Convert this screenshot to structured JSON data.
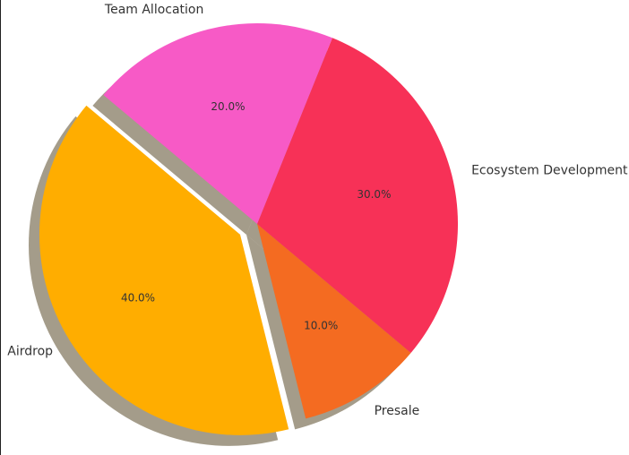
{
  "chart_data": {
    "type": "pie",
    "categories": [
      "Airdrop",
      "Presale",
      "Ecosystem Development",
      "Team Allocation"
    ],
    "values": [
      40,
      10,
      30,
      20
    ],
    "value_labels": [
      "40.0%",
      "10.0%",
      "30.0%",
      "20.0%"
    ],
    "colors": [
      "#ffad00",
      "#f46b21",
      "#f73157",
      "#f75ac6"
    ],
    "explode": [
      0.1,
      0,
      0,
      0
    ],
    "start_angle": 140,
    "shadow": true
  }
}
